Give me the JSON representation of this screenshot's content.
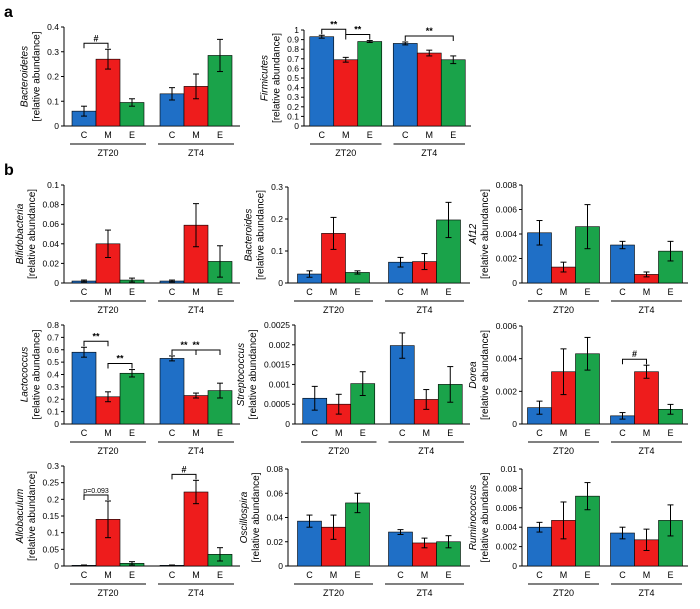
{
  "panels": {
    "a": "a",
    "b": "b"
  },
  "colors": {
    "C": "#1f6fc6",
    "M": "#ee1c1c",
    "E": "#1aa34a"
  },
  "ylabel_unit": "[relative abundance]",
  "chart_data": [
    {
      "id": "a-bacteroidetes",
      "type": "bar",
      "title": "",
      "ylabel": "Bacteroidetes",
      "ylim": [
        0,
        0.4
      ],
      "yticks": [
        0,
        0.1,
        0.2,
        0.3,
        0.4
      ],
      "ytick_labels": [
        "0",
        "0.1",
        "0.2",
        "0.3",
        "0.4"
      ],
      "groups": [
        "ZT20",
        "ZT4"
      ],
      "categories": [
        "C",
        "M",
        "E"
      ],
      "values": [
        [
          0.06,
          0.27,
          0.095
        ],
        [
          0.13,
          0.16,
          0.285
        ]
      ],
      "errors": [
        [
          0.02,
          0.04,
          0.015
        ],
        [
          0.025,
          0.05,
          0.065
        ]
      ],
      "annotations": [
        {
          "group": 0,
          "from": 0,
          "to": 1,
          "label": "#"
        }
      ]
    },
    {
      "id": "a-firmicutes",
      "type": "bar",
      "ylabel": "Firmicutes",
      "ylim": [
        0,
        1
      ],
      "yticks": [
        0,
        0.1,
        0.2,
        0.3,
        0.4,
        0.5,
        0.6,
        0.7,
        0.8,
        0.9,
        1
      ],
      "ytick_labels": [
        "0",
        "0.1",
        "0.2",
        "0.3",
        "0.4",
        "0.5",
        "0.6",
        "0.7",
        "0.8",
        "0.9",
        "1"
      ],
      "groups": [
        "ZT20",
        "ZT4"
      ],
      "categories": [
        "C",
        "M",
        "E"
      ],
      "values": [
        [
          0.93,
          0.69,
          0.88
        ],
        [
          0.86,
          0.76,
          0.69
        ]
      ],
      "errors": [
        [
          0.015,
          0.025,
          0.01
        ],
        [
          0.015,
          0.03,
          0.04
        ]
      ],
      "annotations": [
        {
          "group": 0,
          "from": 0,
          "to": 1,
          "label": "**"
        },
        {
          "group": 0,
          "from": 1,
          "to": 2,
          "label": "**"
        },
        {
          "group": 1,
          "from": 0,
          "to": 2,
          "label": "**"
        }
      ]
    },
    {
      "id": "b-bifidobacteria",
      "type": "bar",
      "ylabel": "Bifidobacteria",
      "ylim": [
        0,
        0.1
      ],
      "yticks": [
        0,
        0.02,
        0.04,
        0.06,
        0.08,
        0.1
      ],
      "ytick_labels": [
        "0",
        "0.02",
        "0.04",
        "0.06",
        "0.08",
        "0.1"
      ],
      "groups": [
        "ZT20",
        "ZT4"
      ],
      "categories": [
        "C",
        "M",
        "E"
      ],
      "values": [
        [
          0.002,
          0.04,
          0.003
        ],
        [
          0.002,
          0.059,
          0.022
        ]
      ],
      "errors": [
        [
          0.001,
          0.014,
          0.002
        ],
        [
          0.001,
          0.022,
          0.016
        ]
      ],
      "annotations": []
    },
    {
      "id": "b-bacteroides",
      "type": "bar",
      "ylabel": "Bacteroides",
      "ylim": [
        0,
        0.3
      ],
      "yticks": [
        0,
        0.1,
        0.2,
        0.3
      ],
      "ytick_labels": [
        "0",
        "0.1",
        "0.2",
        "0.3"
      ],
      "groups": [
        "ZT20",
        "ZT4"
      ],
      "categories": [
        "C",
        "M",
        "E"
      ],
      "values": [
        [
          0.028,
          0.155,
          0.033
        ],
        [
          0.065,
          0.067,
          0.197
        ]
      ],
      "errors": [
        [
          0.01,
          0.05,
          0.005
        ],
        [
          0.015,
          0.025,
          0.055
        ]
      ],
      "annotations": []
    },
    {
      "id": "b-af12",
      "type": "bar",
      "ylabel": "Af12",
      "ylim": [
        0,
        0.008
      ],
      "yticks": [
        0,
        0.002,
        0.004,
        0.006,
        0.008
      ],
      "ytick_labels": [
        "0",
        "0.002",
        "0.004",
        "0.006",
        "0.008"
      ],
      "groups": [
        "ZT20",
        "ZT4"
      ],
      "categories": [
        "C",
        "M",
        "E"
      ],
      "values": [
        [
          0.0041,
          0.0013,
          0.0046
        ],
        [
          0.0031,
          0.0007,
          0.0026
        ]
      ],
      "errors": [
        [
          0.001,
          0.0004,
          0.0018
        ],
        [
          0.0003,
          0.0002,
          0.0008
        ]
      ],
      "annotations": []
    },
    {
      "id": "b-lactococcus",
      "type": "bar",
      "ylabel": "Lactococcus",
      "ylim": [
        0,
        0.8
      ],
      "yticks": [
        0,
        0.1,
        0.2,
        0.3,
        0.4,
        0.5,
        0.6,
        0.7,
        0.8
      ],
      "ytick_labels": [
        "0",
        "0.1",
        "0.2",
        "0.3",
        "0.4",
        "0.5",
        "0.6",
        "0.7",
        "0.8"
      ],
      "groups": [
        "ZT20",
        "ZT4"
      ],
      "categories": [
        "C",
        "M",
        "E"
      ],
      "values": [
        [
          0.58,
          0.22,
          0.41
        ],
        [
          0.53,
          0.23,
          0.27
        ]
      ],
      "errors": [
        [
          0.04,
          0.04,
          0.03
        ],
        [
          0.02,
          0.02,
          0.06
        ]
      ],
      "annotations": [
        {
          "group": 0,
          "from": 0,
          "to": 1,
          "label": "**"
        },
        {
          "group": 0,
          "from": 1,
          "to": 2,
          "label": "**"
        },
        {
          "group": 1,
          "from": 0,
          "to": 1,
          "label": "**"
        },
        {
          "group": 1,
          "from": 0,
          "to": 2,
          "label": "**"
        }
      ]
    },
    {
      "id": "b-streptococcus",
      "type": "bar",
      "ylabel": "Streptococcus",
      "ylim": [
        0,
        0.0025
      ],
      "yticks": [
        0,
        0.0005,
        0.001,
        0.0015,
        0.002,
        0.0025
      ],
      "ytick_labels": [
        "0",
        "0.0005",
        "0.001",
        "0.0015",
        "0.002",
        "0.0025"
      ],
      "groups": [
        "ZT20",
        "ZT4"
      ],
      "categories": [
        "C",
        "M",
        "E"
      ],
      "values": [
        [
          0.00065,
          0.0005,
          0.00102
        ],
        [
          0.00198,
          0.00062,
          0.001
        ]
      ],
      "errors": [
        [
          0.0003,
          0.00025,
          0.0003
        ],
        [
          0.00032,
          0.00025,
          0.00045
        ]
      ],
      "annotations": []
    },
    {
      "id": "b-dorea",
      "type": "bar",
      "ylabel": "Dorea",
      "ylim": [
        0,
        0.006
      ],
      "yticks": [
        0,
        0.002,
        0.004,
        0.006
      ],
      "ytick_labels": [
        "0",
        "0.002",
        "0.004",
        "0.006"
      ],
      "groups": [
        "ZT20",
        "ZT4"
      ],
      "categories": [
        "C",
        "M",
        "E"
      ],
      "values": [
        [
          0.001,
          0.0032,
          0.0043
        ],
        [
          0.0005,
          0.0032,
          0.0009
        ]
      ],
      "errors": [
        [
          0.0004,
          0.0014,
          0.001
        ],
        [
          0.0002,
          0.0004,
          0.0003
        ]
      ],
      "annotations": [
        {
          "group": 1,
          "from": 0,
          "to": 1,
          "label": "#"
        }
      ]
    },
    {
      "id": "b-allobaculum",
      "type": "bar",
      "ylabel": "Allobaculum",
      "ylim": [
        0,
        0.3
      ],
      "yticks": [
        0,
        0.05,
        0.1,
        0.15,
        0.2,
        0.25,
        0.3
      ],
      "ytick_labels": [
        "0",
        "0.05",
        "0.1",
        "0.15",
        "0.2",
        "0.25",
        "0.3"
      ],
      "groups": [
        "ZT20",
        "ZT4"
      ],
      "categories": [
        "C",
        "M",
        "E"
      ],
      "values": [
        [
          0.002,
          0.14,
          0.008
        ],
        [
          0.002,
          0.222,
          0.035
        ]
      ],
      "errors": [
        [
          0.001,
          0.055,
          0.005
        ],
        [
          0.001,
          0.035,
          0.02
        ]
      ],
      "annotations": [
        {
          "group": 0,
          "from": 0,
          "to": 1,
          "label": "p=0.093"
        },
        {
          "group": 1,
          "from": 0,
          "to": 1,
          "label": "#"
        }
      ]
    },
    {
      "id": "b-oscillospira",
      "type": "bar",
      "ylabel": "Oscillospira",
      "ylim": [
        0,
        0.08
      ],
      "yticks": [
        0,
        0.02,
        0.04,
        0.06,
        0.08
      ],
      "ytick_labels": [
        "0",
        "0.02",
        "0.04",
        "0.06",
        "0.08"
      ],
      "groups": [
        "ZT20",
        "ZT4"
      ],
      "categories": [
        "C",
        "M",
        "E"
      ],
      "values": [
        [
          0.037,
          0.032,
          0.052
        ],
        [
          0.028,
          0.019,
          0.02
        ]
      ],
      "errors": [
        [
          0.005,
          0.01,
          0.008
        ],
        [
          0.002,
          0.004,
          0.005
        ]
      ],
      "annotations": []
    },
    {
      "id": "b-ruminococcus",
      "type": "bar",
      "ylabel": "Ruminococcus",
      "ylim": [
        0,
        0.01
      ],
      "yticks": [
        0,
        0.002,
        0.004,
        0.006,
        0.008,
        0.01
      ],
      "ytick_labels": [
        "0",
        "0.002",
        "0.004",
        "0.006",
        "0.008",
        "0.01"
      ],
      "groups": [
        "ZT20",
        "ZT4"
      ],
      "categories": [
        "C",
        "M",
        "E"
      ],
      "values": [
        [
          0.004,
          0.0047,
          0.0072
        ],
        [
          0.0034,
          0.0027,
          0.0047
        ]
      ],
      "errors": [
        [
          0.0005,
          0.0019,
          0.0014
        ],
        [
          0.0006,
          0.0011,
          0.0016
        ]
      ],
      "annotations": []
    }
  ]
}
